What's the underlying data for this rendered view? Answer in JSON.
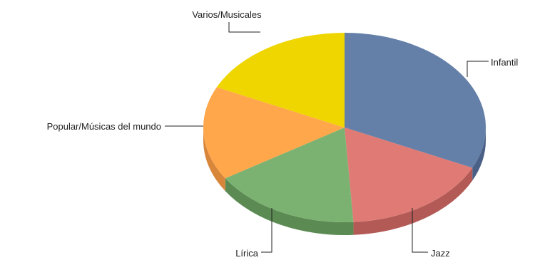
{
  "chart_data": {
    "type": "pie",
    "style": "3d",
    "legend": "none",
    "categories": [
      "Infantil",
      "Jazz",
      "Lírica",
      "Popular/Músicas del mundo",
      "Varios/Musicales"
    ],
    "values": [
      32,
      17,
      17,
      16,
      18
    ],
    "colors": [
      "#6580a8",
      "#e07a74",
      "#7cb271",
      "#ffa74a",
      "#efd600"
    ],
    "side_colors": [
      "#4b6087",
      "#b35a56",
      "#5b8a52",
      "#d8863a",
      "#c4ab00"
    ]
  }
}
